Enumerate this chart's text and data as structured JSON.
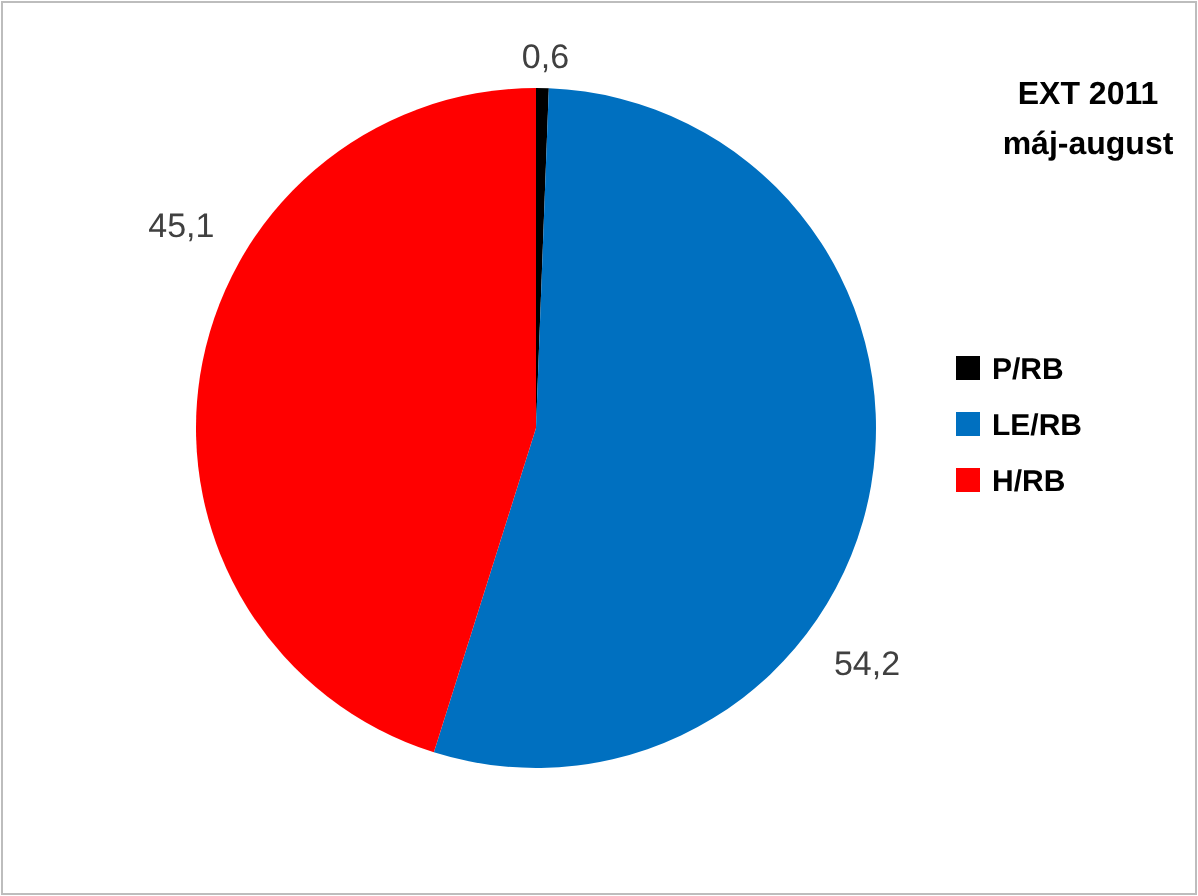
{
  "chart_data": {
    "type": "pie",
    "title": "EXT 2011",
    "subtitle": "máj-august",
    "categories": [
      "P/RB",
      "LE/RB",
      "H/RB"
    ],
    "values": [
      0.6,
      54.2,
      45.1
    ],
    "colors": [
      "#000000",
      "#0070c0",
      "#ff0000"
    ],
    "value_labels": [
      "0,6",
      "54,2",
      "45,1"
    ],
    "legend": "right"
  }
}
